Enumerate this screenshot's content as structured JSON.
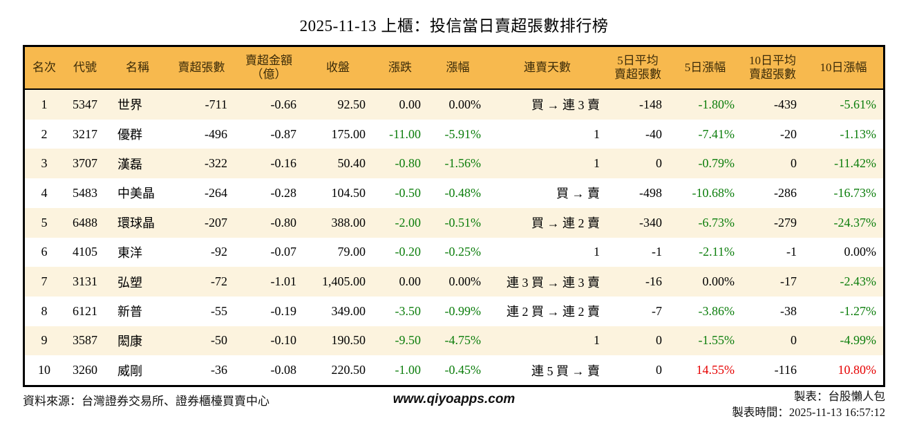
{
  "title": "2025-11-13 上櫃：投信當日賣超張數排行榜",
  "colors": {
    "header_bg": "#F7B94E",
    "row_alt_bg": "#FCF3DE",
    "down_green": "#0b7d0b",
    "up_red": "#e60000",
    "border": "#000000"
  },
  "chart_data": {
    "type": "table",
    "title": "2025-11-13 上櫃：投信當日賣超張數排行榜",
    "columns": [
      {
        "label": "名次",
        "align": "center"
      },
      {
        "label": "代號",
        "align": "center"
      },
      {
        "label": "名稱",
        "align": "left"
      },
      {
        "label": "賣超張數",
        "align": "right"
      },
      {
        "label": "賣超金額\n（億）",
        "align": "right"
      },
      {
        "label": "收盤",
        "align": "right"
      },
      {
        "label": "漲跌",
        "align": "right"
      },
      {
        "label": "漲幅",
        "align": "right"
      },
      {
        "label": "連賣天數",
        "align": "right"
      },
      {
        "label": "5日平均\n賣超張數",
        "align": "right"
      },
      {
        "label": "5日漲幅",
        "align": "right"
      },
      {
        "label": "10日平均\n賣超張數",
        "align": "right"
      },
      {
        "label": "10日漲幅",
        "align": "right"
      }
    ],
    "rows": [
      [
        {
          "t": "1",
          "c": "k"
        },
        {
          "t": "5347",
          "c": "k"
        },
        {
          "t": "世界",
          "c": "k"
        },
        {
          "t": "-711",
          "c": "k"
        },
        {
          "t": "-0.66",
          "c": "k"
        },
        {
          "t": "92.50",
          "c": "k"
        },
        {
          "t": "0.00",
          "c": "k"
        },
        {
          "t": "0.00%",
          "c": "k"
        },
        {
          "t": "買 → 連 3 賣",
          "c": "k"
        },
        {
          "t": "-148",
          "c": "k"
        },
        {
          "t": "-1.80%",
          "c": "g"
        },
        {
          "t": "-439",
          "c": "k"
        },
        {
          "t": "-5.61%",
          "c": "g"
        }
      ],
      [
        {
          "t": "2",
          "c": "k"
        },
        {
          "t": "3217",
          "c": "k"
        },
        {
          "t": "優群",
          "c": "k"
        },
        {
          "t": "-496",
          "c": "k"
        },
        {
          "t": "-0.87",
          "c": "k"
        },
        {
          "t": "175.00",
          "c": "k"
        },
        {
          "t": "-11.00",
          "c": "g"
        },
        {
          "t": "-5.91%",
          "c": "g"
        },
        {
          "t": "1",
          "c": "k"
        },
        {
          "t": "-40",
          "c": "k"
        },
        {
          "t": "-7.41%",
          "c": "g"
        },
        {
          "t": "-20",
          "c": "k"
        },
        {
          "t": "-1.13%",
          "c": "g"
        }
      ],
      [
        {
          "t": "3",
          "c": "k"
        },
        {
          "t": "3707",
          "c": "k"
        },
        {
          "t": "漢磊",
          "c": "k"
        },
        {
          "t": "-322",
          "c": "k"
        },
        {
          "t": "-0.16",
          "c": "k"
        },
        {
          "t": "50.40",
          "c": "k"
        },
        {
          "t": "-0.80",
          "c": "g"
        },
        {
          "t": "-1.56%",
          "c": "g"
        },
        {
          "t": "1",
          "c": "k"
        },
        {
          "t": "0",
          "c": "k"
        },
        {
          "t": "-0.79%",
          "c": "g"
        },
        {
          "t": "0",
          "c": "k"
        },
        {
          "t": "-11.42%",
          "c": "g"
        }
      ],
      [
        {
          "t": "4",
          "c": "k"
        },
        {
          "t": "5483",
          "c": "k"
        },
        {
          "t": "中美晶",
          "c": "k"
        },
        {
          "t": "-264",
          "c": "k"
        },
        {
          "t": "-0.28",
          "c": "k"
        },
        {
          "t": "104.50",
          "c": "k"
        },
        {
          "t": "-0.50",
          "c": "g"
        },
        {
          "t": "-0.48%",
          "c": "g"
        },
        {
          "t": "買 → 賣",
          "c": "k"
        },
        {
          "t": "-498",
          "c": "k"
        },
        {
          "t": "-10.68%",
          "c": "g"
        },
        {
          "t": "-286",
          "c": "k"
        },
        {
          "t": "-16.73%",
          "c": "g"
        }
      ],
      [
        {
          "t": "5",
          "c": "k"
        },
        {
          "t": "6488",
          "c": "k"
        },
        {
          "t": "環球晶",
          "c": "k"
        },
        {
          "t": "-207",
          "c": "k"
        },
        {
          "t": "-0.80",
          "c": "k"
        },
        {
          "t": "388.00",
          "c": "k"
        },
        {
          "t": "-2.00",
          "c": "g"
        },
        {
          "t": "-0.51%",
          "c": "g"
        },
        {
          "t": "買 → 連 2 賣",
          "c": "k"
        },
        {
          "t": "-340",
          "c": "k"
        },
        {
          "t": "-6.73%",
          "c": "g"
        },
        {
          "t": "-279",
          "c": "k"
        },
        {
          "t": "-24.37%",
          "c": "g"
        }
      ],
      [
        {
          "t": "6",
          "c": "k"
        },
        {
          "t": "4105",
          "c": "k"
        },
        {
          "t": "東洋",
          "c": "k"
        },
        {
          "t": "-92",
          "c": "k"
        },
        {
          "t": "-0.07",
          "c": "k"
        },
        {
          "t": "79.00",
          "c": "k"
        },
        {
          "t": "-0.20",
          "c": "g"
        },
        {
          "t": "-0.25%",
          "c": "g"
        },
        {
          "t": "1",
          "c": "k"
        },
        {
          "t": "-1",
          "c": "k"
        },
        {
          "t": "-2.11%",
          "c": "g"
        },
        {
          "t": "-1",
          "c": "k"
        },
        {
          "t": "0.00%",
          "c": "k"
        }
      ],
      [
        {
          "t": "7",
          "c": "k"
        },
        {
          "t": "3131",
          "c": "k"
        },
        {
          "t": "弘塑",
          "c": "k"
        },
        {
          "t": "-72",
          "c": "k"
        },
        {
          "t": "-1.01",
          "c": "k"
        },
        {
          "t": "1,405.00",
          "c": "k"
        },
        {
          "t": "0.00",
          "c": "k"
        },
        {
          "t": "0.00%",
          "c": "k"
        },
        {
          "t": "連 3 買 → 連 3 賣",
          "c": "k"
        },
        {
          "t": "-16",
          "c": "k"
        },
        {
          "t": "0.00%",
          "c": "k"
        },
        {
          "t": "-17",
          "c": "k"
        },
        {
          "t": "-2.43%",
          "c": "g"
        }
      ],
      [
        {
          "t": "8",
          "c": "k"
        },
        {
          "t": "6121",
          "c": "k"
        },
        {
          "t": "新普",
          "c": "k"
        },
        {
          "t": "-55",
          "c": "k"
        },
        {
          "t": "-0.19",
          "c": "k"
        },
        {
          "t": "349.00",
          "c": "k"
        },
        {
          "t": "-3.50",
          "c": "g"
        },
        {
          "t": "-0.99%",
          "c": "g"
        },
        {
          "t": "連 2 買 → 連 2 賣",
          "c": "k"
        },
        {
          "t": "-7",
          "c": "k"
        },
        {
          "t": "-3.86%",
          "c": "g"
        },
        {
          "t": "-38",
          "c": "k"
        },
        {
          "t": "-1.27%",
          "c": "g"
        }
      ],
      [
        {
          "t": "9",
          "c": "k"
        },
        {
          "t": "3587",
          "c": "k"
        },
        {
          "t": "閎康",
          "c": "k"
        },
        {
          "t": "-50",
          "c": "k"
        },
        {
          "t": "-0.10",
          "c": "k"
        },
        {
          "t": "190.50",
          "c": "k"
        },
        {
          "t": "-9.50",
          "c": "g"
        },
        {
          "t": "-4.75%",
          "c": "g"
        },
        {
          "t": "1",
          "c": "k"
        },
        {
          "t": "0",
          "c": "k"
        },
        {
          "t": "-1.55%",
          "c": "g"
        },
        {
          "t": "0",
          "c": "k"
        },
        {
          "t": "-4.99%",
          "c": "g"
        }
      ],
      [
        {
          "t": "10",
          "c": "k"
        },
        {
          "t": "3260",
          "c": "k"
        },
        {
          "t": "威剛",
          "c": "k"
        },
        {
          "t": "-36",
          "c": "k"
        },
        {
          "t": "-0.08",
          "c": "k"
        },
        {
          "t": "220.50",
          "c": "k"
        },
        {
          "t": "-1.00",
          "c": "g"
        },
        {
          "t": "-0.45%",
          "c": "g"
        },
        {
          "t": "連 5 買 → 賣",
          "c": "k"
        },
        {
          "t": "0",
          "c": "k"
        },
        {
          "t": "14.55%",
          "c": "r"
        },
        {
          "t": "-116",
          "c": "k"
        },
        {
          "t": "10.80%",
          "c": "r"
        }
      ]
    ]
  },
  "footer": {
    "source": "資料來源：台灣證券交易所、證券櫃檯買賣中心",
    "website": "www.qiyoapps.com",
    "maker": "製表：台股懶人包",
    "made_at": "製表時間：2025-11-13 16:57:12"
  }
}
